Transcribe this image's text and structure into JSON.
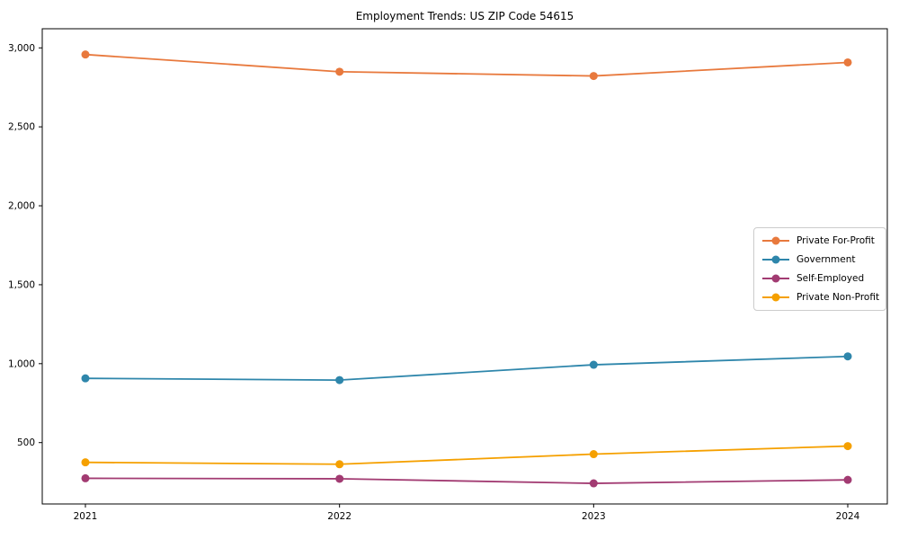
{
  "chart_data": {
    "type": "line",
    "title": "Employment Trends: US ZIP Code 54615",
    "xlabel": "",
    "ylabel": "",
    "x": [
      2021,
      2022,
      2023,
      2024
    ],
    "x_tick_labels": [
      "2021",
      "2022",
      "2023",
      "2024"
    ],
    "y_ticks": [
      {
        "value": 500,
        "label": "500"
      },
      {
        "value": 1000,
        "label": "1,000"
      },
      {
        "value": 1500,
        "label": "1,500"
      },
      {
        "value": 2000,
        "label": "2,000"
      },
      {
        "value": 2500,
        "label": "2,500"
      },
      {
        "value": 3000,
        "label": "3,000"
      }
    ],
    "ylim": [
      110,
      3120
    ],
    "grid": false,
    "legend_position": "center-right",
    "series": [
      {
        "name": "Private For-Profit",
        "color": "#E8793D",
        "values": [
          2958,
          2849,
          2822,
          2908
        ]
      },
      {
        "name": "Government",
        "color": "#2E86AB",
        "values": [
          907,
          896,
          993,
          1046
        ]
      },
      {
        "name": "Self-Employed",
        "color": "#A23B72",
        "values": [
          274,
          271,
          242,
          264
        ]
      },
      {
        "name": "Private Non-Profit",
        "color": "#F5A000",
        "values": [
          375,
          363,
          427,
          478
        ]
      }
    ]
  }
}
